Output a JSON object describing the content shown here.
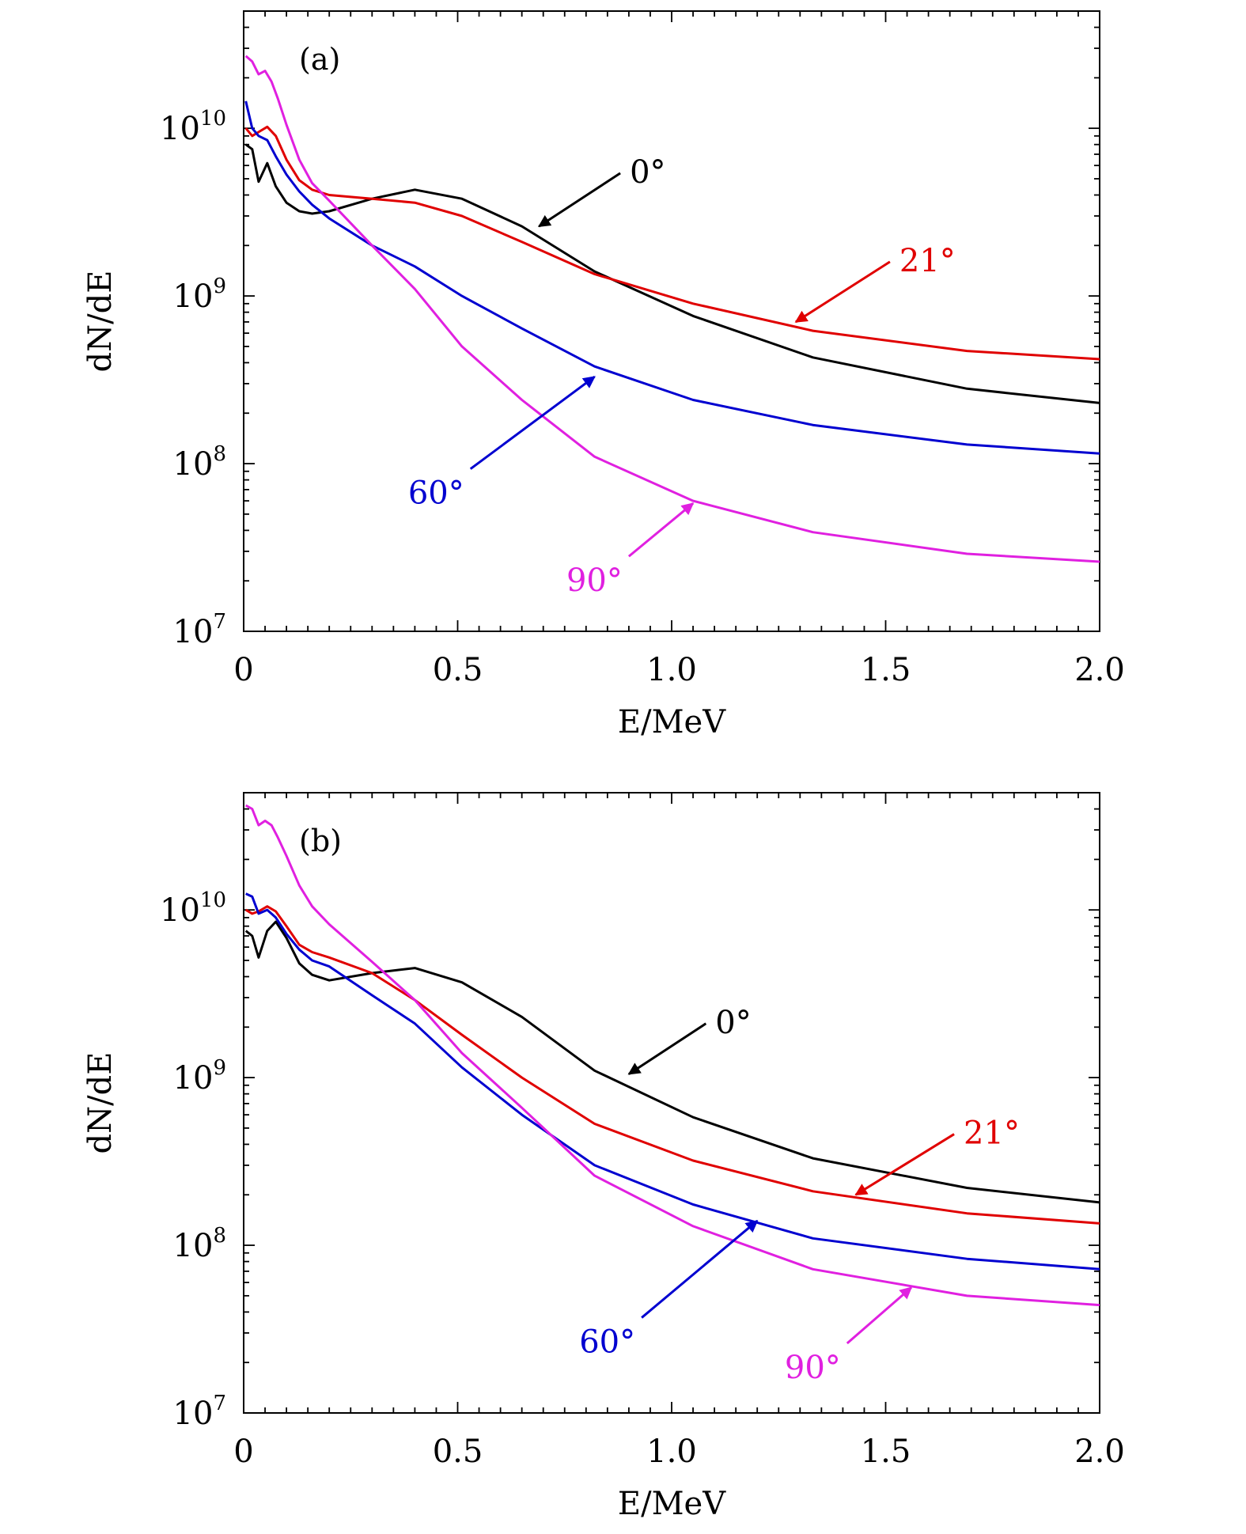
{
  "chart_data": [
    {
      "type": "line",
      "panel_label": "(a)",
      "xlabel": "E/MeV",
      "ylabel": "dN/dE",
      "xlim": [
        0,
        2.0
      ],
      "ylim": [
        10000000.0,
        50000000000.0
      ],
      "yscale": "log",
      "grid": false,
      "x_ticks": [
        "0",
        "0.5",
        "1.0",
        "1.5",
        "2.0"
      ],
      "y_ticks": [
        {
          "base": "10",
          "exp": "7"
        },
        {
          "base": "10",
          "exp": "8"
        },
        {
          "base": "10",
          "exp": "9"
        },
        {
          "base": "10",
          "exp": "10"
        }
      ],
      "series": [
        {
          "name": "0°",
          "color": "#000000",
          "x": [
            0.005,
            0.02,
            0.035,
            0.055,
            0.075,
            0.1,
            0.13,
            0.16,
            0.2,
            0.3,
            0.4,
            0.51,
            0.65,
            0.82,
            1.05,
            1.33,
            1.69,
            2.0
          ],
          "y": [
            8000000000.0,
            7500000000.0,
            4800000000.0,
            6200000000.0,
            4500000000.0,
            3600000000.0,
            3200000000.0,
            3100000000.0,
            3200000000.0,
            3800000000.0,
            4300000000.0,
            3800000000.0,
            2600000000.0,
            1400000000.0,
            760000000.0,
            430000000.0,
            280000000.0,
            230000000.0
          ]
        },
        {
          "name": "21°",
          "color": "#e00000",
          "x": [
            0.005,
            0.02,
            0.035,
            0.055,
            0.075,
            0.1,
            0.13,
            0.16,
            0.2,
            0.3,
            0.4,
            0.51,
            0.65,
            0.82,
            1.05,
            1.33,
            1.69,
            2.0
          ],
          "y": [
            10000000000.0,
            9000000000.0,
            9500000000.0,
            10200000000.0,
            9000000000.0,
            6500000000.0,
            4900000000.0,
            4300000000.0,
            4000000000.0,
            3800000000.0,
            3600000000.0,
            3000000000.0,
            2100000000.0,
            1350000000.0,
            900000000.0,
            620000000.0,
            470000000.0,
            420000000.0
          ]
        },
        {
          "name": "60°",
          "color": "#0000d0",
          "x": [
            0.005,
            0.02,
            0.035,
            0.055,
            0.075,
            0.1,
            0.13,
            0.16,
            0.2,
            0.3,
            0.4,
            0.51,
            0.65,
            0.82,
            1.05,
            1.33,
            1.69,
            2.0
          ],
          "y": [
            14500000000.0,
            10000000000.0,
            9000000000.0,
            8500000000.0,
            6800000000.0,
            5300000000.0,
            4200000000.0,
            3500000000.0,
            2900000000.0,
            2000000000.0,
            1500000000.0,
            1000000000.0,
            640000000.0,
            380000000.0,
            240000000.0,
            170000000.0,
            130000000.0,
            115000000.0
          ]
        },
        {
          "name": "90°",
          "color": "#e020e0",
          "x": [
            0.005,
            0.02,
            0.035,
            0.05,
            0.065,
            0.08,
            0.1,
            0.13,
            0.16,
            0.2,
            0.3,
            0.4,
            0.51,
            0.65,
            0.82,
            1.05,
            1.33,
            1.69,
            2.0
          ],
          "y": [
            27000000000.0,
            25000000000.0,
            21000000000.0,
            22000000000.0,
            19000000000.0,
            15000000000.0,
            10500000000.0,
            6500000000.0,
            4700000000.0,
            3700000000.0,
            2000000000.0,
            1100000000.0,
            500000000.0,
            240000000.0,
            110000000.0,
            60000000.0,
            39000000.0,
            29000000.0,
            26000000.0
          ]
        }
      ],
      "annotations": [
        {
          "text": "0°",
          "series": "0°",
          "target": [
            0.69,
            2600000000.0
          ],
          "tail": [
            0.88,
            5400000000.0
          ]
        },
        {
          "text": "21°",
          "series": "21°",
          "target": [
            1.29,
            700000000.0
          ],
          "tail": [
            1.51,
            1600000000.0
          ]
        },
        {
          "text": "60°",
          "series": "60°",
          "target": [
            0.82,
            330000000.0
          ],
          "tail": [
            0.53,
            93000000.0
          ]
        },
        {
          "text": "90°",
          "series": "90°",
          "target": [
            1.05,
            58000000.0
          ],
          "tail": [
            0.9,
            28000000.0
          ]
        }
      ]
    },
    {
      "type": "line",
      "panel_label": "(b)",
      "xlabel": "E/MeV",
      "ylabel": "dN/dE",
      "xlim": [
        0,
        2.0
      ],
      "ylim": [
        10000000.0,
        50000000000.0
      ],
      "yscale": "log",
      "grid": false,
      "x_ticks": [
        "0",
        "0.5",
        "1.0",
        "1.5",
        "2.0"
      ],
      "y_ticks": [
        {
          "base": "10",
          "exp": "7"
        },
        {
          "base": "10",
          "exp": "8"
        },
        {
          "base": "10",
          "exp": "9"
        },
        {
          "base": "10",
          "exp": "10"
        }
      ],
      "series": [
        {
          "name": "0°",
          "color": "#000000",
          "x": [
            0.005,
            0.02,
            0.035,
            0.055,
            0.075,
            0.1,
            0.13,
            0.16,
            0.2,
            0.3,
            0.4,
            0.51,
            0.65,
            0.82,
            1.05,
            1.33,
            1.69,
            2.0
          ],
          "y": [
            7500000000.0,
            7000000000.0,
            5200000000.0,
            7500000000.0,
            8500000000.0,
            6800000000.0,
            4800000000.0,
            4100000000.0,
            3800000000.0,
            4200000000.0,
            4500000000.0,
            3700000000.0,
            2300000000.0,
            1100000000.0,
            580000000.0,
            330000000.0,
            220000000.0,
            180000000.0
          ]
        },
        {
          "name": "21°",
          "color": "#e00000",
          "x": [
            0.005,
            0.02,
            0.035,
            0.055,
            0.075,
            0.1,
            0.13,
            0.16,
            0.2,
            0.3,
            0.4,
            0.51,
            0.65,
            0.82,
            1.05,
            1.33,
            1.69,
            2.0
          ],
          "y": [
            10000000000.0,
            9500000000.0,
            9800000000.0,
            10500000000.0,
            9800000000.0,
            8000000000.0,
            6200000000.0,
            5600000000.0,
            5200000000.0,
            4200000000.0,
            2900000000.0,
            1800000000.0,
            1000000000.0,
            530000000.0,
            320000000.0,
            210000000.0,
            155000000.0,
            135000000.0
          ]
        },
        {
          "name": "60°",
          "color": "#0000d0",
          "x": [
            0.005,
            0.02,
            0.035,
            0.055,
            0.075,
            0.1,
            0.13,
            0.16,
            0.2,
            0.3,
            0.4,
            0.51,
            0.65,
            0.82,
            1.05,
            1.33,
            1.69,
            2.0
          ],
          "y": [
            12500000000.0,
            12000000000.0,
            9500000000.0,
            10000000000.0,
            9000000000.0,
            7200000000.0,
            5800000000.0,
            5000000000.0,
            4600000000.0,
            3100000000.0,
            2100000000.0,
            1150000000.0,
            600000000.0,
            300000000.0,
            175000000.0,
            110000000.0,
            83000000.0,
            72000000.0
          ]
        },
        {
          "name": "90°",
          "color": "#e020e0",
          "x": [
            0.005,
            0.02,
            0.035,
            0.05,
            0.065,
            0.08,
            0.1,
            0.13,
            0.16,
            0.2,
            0.3,
            0.4,
            0.51,
            0.65,
            0.82,
            1.05,
            1.33,
            1.69,
            2.0
          ],
          "y": [
            42000000000.0,
            40000000000.0,
            32000000000.0,
            34000000000.0,
            32000000000.0,
            27000000000.0,
            21000000000.0,
            14000000000.0,
            10500000000.0,
            8200000000.0,
            4900000000.0,
            2900000000.0,
            1400000000.0,
            660000000.0,
            260000000.0,
            130000000.0,
            72000000.0,
            50000000.0,
            44000000.0
          ]
        }
      ],
      "annotations": [
        {
          "text": "0°",
          "series": "0°",
          "target": [
            0.9,
            1050000000.0
          ],
          "tail": [
            1.08,
            2100000000.0
          ]
        },
        {
          "text": "21°",
          "series": "21°",
          "target": [
            1.43,
            200000000.0
          ],
          "tail": [
            1.66,
            460000000.0
          ]
        },
        {
          "text": "60°",
          "series": "60°",
          "target": [
            1.2,
            140000000.0
          ],
          "tail": [
            0.93,
            37000000.0
          ]
        },
        {
          "text": "90°",
          "series": "90°",
          "target": [
            1.56,
            56000000.0
          ],
          "tail": [
            1.41,
            26000000.0
          ]
        }
      ]
    }
  ]
}
